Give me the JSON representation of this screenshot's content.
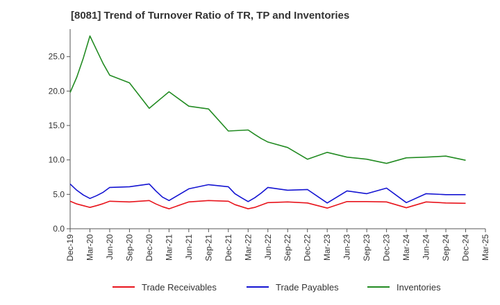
{
  "chart_data": {
    "type": "line",
    "title": "[8081]  Trend of Turnover Ratio of TR, TP and Inventories",
    "xlabel": "",
    "ylabel": "",
    "ylim": [
      0,
      29
    ],
    "yticks": [
      "0.0",
      "5.0",
      "10.0",
      "15.0",
      "20.0",
      "25.0"
    ],
    "xticks": [
      "Dec-19",
      "Mar-20",
      "Jun-20",
      "Sep-20",
      "Dec-20",
      "Mar-21",
      "Jun-21",
      "Sep-21",
      "Dec-21",
      "Mar-22",
      "Jun-22",
      "Sep-22",
      "Dec-22",
      "Mar-23",
      "Jun-23",
      "Sep-23",
      "Dec-23",
      "Mar-24",
      "Jun-24",
      "Sep-24",
      "Dec-24",
      "Mar-25"
    ],
    "x": [
      "Dec-19",
      "Jan-20",
      "Feb-20",
      "Mar-20",
      "Apr-20",
      "May-20",
      "Jun-20",
      "Sep-20",
      "Dec-20",
      "Jan-21",
      "Feb-21",
      "Mar-21",
      "Jun-21",
      "Sep-21",
      "Dec-21",
      "Jan-22",
      "Feb-22",
      "Mar-22",
      "Apr-22",
      "May-22",
      "Jun-22",
      "Sep-22",
      "Dec-22",
      "Mar-23",
      "Jun-23",
      "Sep-23",
      "Dec-23",
      "Mar-24",
      "Jun-24",
      "Sep-24",
      "Dec-24"
    ],
    "grid": false,
    "legend_position": "bottom",
    "series": [
      {
        "name": "Trade Receivables",
        "color": "#e8141c",
        "values": [
          4.0,
          3.6,
          3.35,
          3.1,
          3.35,
          3.65,
          4.0,
          3.9,
          4.1,
          3.6,
          3.2,
          2.9,
          3.9,
          4.1,
          4.0,
          3.5,
          3.2,
          2.9,
          3.1,
          3.45,
          3.8,
          3.9,
          3.75,
          3.0,
          3.95,
          3.95,
          3.9,
          3.05,
          3.9,
          3.75,
          3.7
        ]
      },
      {
        "name": "Trade Payables",
        "color": "#1414d2",
        "values": [
          6.5,
          5.6,
          4.9,
          4.4,
          4.8,
          5.3,
          6.0,
          6.1,
          6.5,
          5.5,
          4.6,
          4.1,
          5.8,
          6.4,
          6.1,
          5.1,
          4.5,
          3.95,
          4.5,
          5.2,
          6.0,
          5.6,
          5.7,
          3.75,
          5.5,
          5.1,
          5.9,
          3.8,
          5.1,
          4.95,
          4.95
        ]
      },
      {
        "name": "Inventories",
        "color": "#228b22",
        "values": [
          19.8,
          22.0,
          24.8,
          28.0,
          26.0,
          24.0,
          22.3,
          21.2,
          17.5,
          18.3,
          19.1,
          19.9,
          17.8,
          17.4,
          14.2,
          14.25,
          14.3,
          14.35,
          13.7,
          13.1,
          12.6,
          11.8,
          10.1,
          11.1,
          10.4,
          10.1,
          9.5,
          10.3,
          10.4,
          10.55,
          9.95
        ]
      }
    ]
  }
}
